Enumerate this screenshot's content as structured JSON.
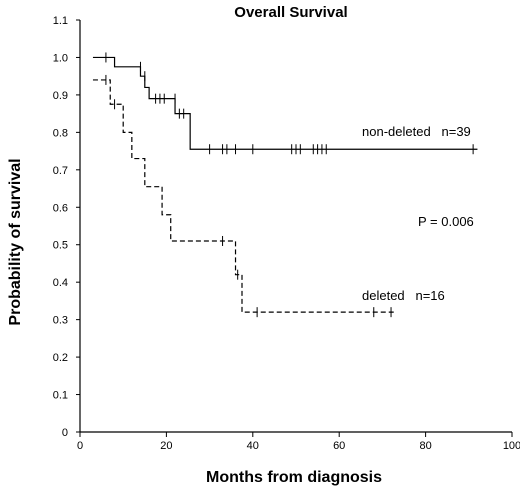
{
  "chart_data": {
    "type": "line",
    "title": "Overall Survival",
    "xlabel": "Months from diagnosis",
    "ylabel": "Probability of survival",
    "xlim": [
      0,
      100
    ],
    "ylim": [
      0,
      1.1
    ],
    "xticks": [
      0,
      20,
      40,
      60,
      80,
      100
    ],
    "yticks": [
      0,
      0.1,
      0.2,
      0.3,
      0.4,
      0.5,
      0.6,
      0.7,
      0.8,
      0.9,
      1.0,
      1.1
    ],
    "ytick_labels": [
      "0",
      "0.1",
      "0.2",
      "0.3",
      "0.4",
      "0.5",
      "0.6",
      "0.7",
      "0.8",
      "0.9",
      "1.0",
      "1.1"
    ],
    "grid": false,
    "annotations": [
      {
        "text": "non-deleted   n=39"
      },
      {
        "text": "P = 0.006"
      },
      {
        "text": "deleted   n=16"
      }
    ],
    "series": [
      {
        "line_style": "solid",
        "steps": [
          [
            3,
            1.0
          ],
          [
            8,
            0.975
          ],
          [
            14,
            0.95
          ],
          [
            15,
            0.92
          ],
          [
            16,
            0.89
          ],
          [
            22,
            0.85
          ],
          [
            25.5,
            0.755
          ],
          [
            92,
            0.755
          ]
        ],
        "censored": [
          [
            6,
            1.0
          ],
          [
            14,
            0.975
          ],
          [
            15,
            0.95
          ],
          [
            17.5,
            0.89
          ],
          [
            18.5,
            0.89
          ],
          [
            19.5,
            0.89
          ],
          [
            22,
            0.89
          ],
          [
            23,
            0.85
          ],
          [
            24,
            0.85
          ],
          [
            30,
            0.755
          ],
          [
            33,
            0.755
          ],
          [
            34,
            0.755
          ],
          [
            36,
            0.755
          ],
          [
            40,
            0.755
          ],
          [
            49,
            0.755
          ],
          [
            50,
            0.755
          ],
          [
            51,
            0.755
          ],
          [
            54,
            0.755
          ],
          [
            55,
            0.755
          ],
          [
            56,
            0.755
          ],
          [
            57,
            0.755
          ],
          [
            91,
            0.755
          ]
        ]
      },
      {
        "line_style": "dashed",
        "steps": [
          [
            3,
            0.94
          ],
          [
            7,
            0.875
          ],
          [
            10,
            0.8
          ],
          [
            12,
            0.73
          ],
          [
            15,
            0.655
          ],
          [
            19,
            0.58
          ],
          [
            21,
            0.51
          ],
          [
            36,
            0.42
          ],
          [
            37.5,
            0.32
          ],
          [
            73,
            0.32
          ]
        ],
        "censored": [
          [
            6,
            0.94
          ],
          [
            8,
            0.875
          ],
          [
            33,
            0.51
          ],
          [
            36.5,
            0.42
          ],
          [
            41,
            0.32
          ],
          [
            68,
            0.32
          ],
          [
            72,
            0.32
          ]
        ]
      }
    ]
  }
}
